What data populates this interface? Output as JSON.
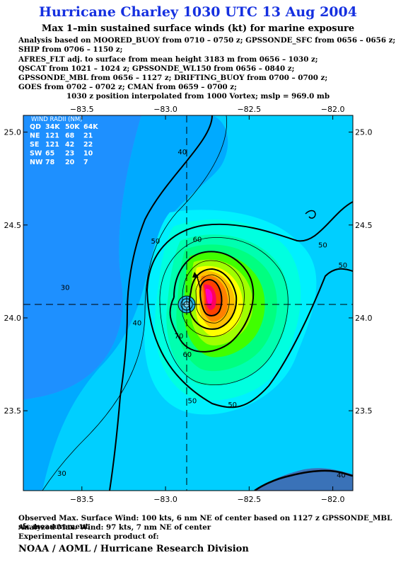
{
  "header": {
    "title": "Hurricane Charley 1030 UTC 13 Aug 2004",
    "subtitle": "Max 1–min sustained surface winds (kt) for marine exposure",
    "analysis_lines": [
      "Analysis based on MOORED_BUOY from 0710 – 0750 z; GPSSONDE_SFC from 0656 – 0656 z;",
      "SHIP from 0706 – 1150 z;",
      "AFRES_FLT adj. to surface from mean height 3183 m from 0656 – 1030 z;",
      "QSCAT from 1021 – 1024 z; GPSSONDE_WL150 from 0656 – 0840 z;",
      "GPSSONDE_MBL from 0656 – 1127 z; DRIFTING_BUOY from 0700 – 0700 z;",
      "GOES from 0702 – 0702 z; CMAN from 0659 – 0700 z;"
    ],
    "interpolation": "1030 z position interpolated from 1000 Vortex; mslp = 969.0 mb"
  },
  "chart_data": {
    "type": "contour",
    "xlabel": "",
    "ylabel": "",
    "xlim": [
      -83.85,
      -81.88
    ],
    "ylim": [
      23.07,
      25.09
    ],
    "x_ticks": [
      -83.5,
      -83.0,
      -82.5,
      -82.0
    ],
    "x_tick_labels": [
      "−83.5",
      "−83.0",
      "−82.5",
      "−82.0"
    ],
    "y_ticks": [
      25.0,
      24.5,
      24.0,
      23.5
    ],
    "y_tick_labels": [
      "25.0",
      "24.5",
      "24.0",
      "23.5"
    ],
    "center": {
      "lon": -82.87,
      "lat": 24.1
    },
    "contour_interval_kt": 5,
    "bold_contours_kt": [
      40,
      50,
      60,
      70,
      80
    ],
    "contour_labels": [
      {
        "text": "30",
        "lon": -83.6,
        "lat": 24.15
      },
      {
        "text": "40",
        "lon": -82.9,
        "lat": 24.88
      },
      {
        "text": "40",
        "lon": -83.17,
        "lat": 23.96
      },
      {
        "text": "50",
        "lon": -83.06,
        "lat": 24.4
      },
      {
        "text": "50",
        "lon": -82.6,
        "lat": 23.52
      },
      {
        "text": "50",
        "lon": -82.84,
        "lat": 23.54
      },
      {
        "text": "50",
        "lon": -82.06,
        "lat": 24.38
      },
      {
        "text": "50",
        "lon": -81.94,
        "lat": 24.27
      },
      {
        "text": "60",
        "lon": -82.81,
        "lat": 24.41
      },
      {
        "text": "60",
        "lon": -82.87,
        "lat": 23.79
      },
      {
        "text": "70",
        "lon": -82.92,
        "lat": 23.89
      },
      {
        "text": "40",
        "lon": -81.95,
        "lat": 23.14
      },
      {
        "text": "30",
        "lon": -83.62,
        "lat": 23.15
      }
    ],
    "color_scale_kt": [
      20,
      25,
      30,
      35,
      40,
      45,
      50,
      55,
      60,
      65,
      70,
      75,
      80,
      85,
      90,
      95
    ],
    "color_scale_hex": [
      "#1e90ff",
      "#00aaff",
      "#00cfff",
      "#00f0ff",
      "#00ffe0",
      "#00ffb0",
      "#00ff80",
      "#00ff40",
      "#40ff00",
      "#a0ff00",
      "#ffff00",
      "#ffc000",
      "#ff8000",
      "#ff4000",
      "#ff0060",
      "#ff00c0"
    ],
    "wind_radii": {
      "title": "WIND RADII (NM)",
      "columns": [
        "QD",
        "34K",
        "50K",
        "64K"
      ],
      "rows": [
        [
          "NE",
          "121",
          "68",
          "21"
        ],
        [
          "SE",
          "121",
          "42",
          "22"
        ],
        [
          "SW",
          "65",
          "23",
          "10"
        ],
        [
          "NW",
          "78",
          "20",
          "7"
        ]
      ]
    }
  },
  "footer": {
    "observed": "Observed Max. Surface Wind: 100 kts, 6 nm NE of center based on 1127 z GPSSONDE_MBL sfc measurement",
    "analyzed": "Analyzed Max. Wind: 97 kts, 7 nm NE of center",
    "experimental": "Experimental research product of:",
    "org": "NOAA / AOML / Hurricane Research Division"
  },
  "colors": {
    "title": "#1530e0",
    "land": "#3a72b8"
  }
}
